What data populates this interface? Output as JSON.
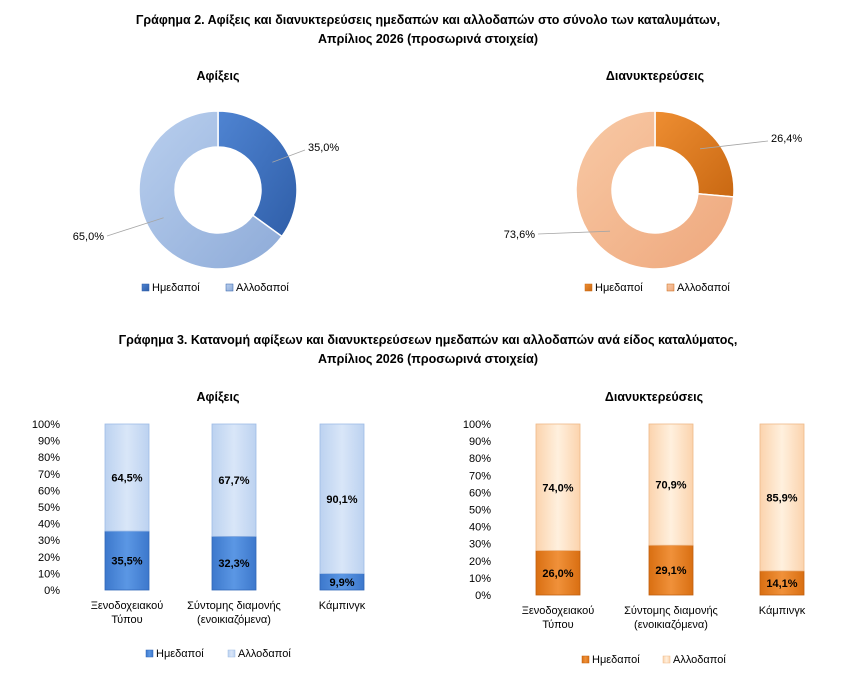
{
  "figure2": {
    "title_line1": "Γράφημα 2. Αφίξεις και διανυκτερεύσεις ημεδαπών και αλλοδαπών στο σύνολο των καταλυμάτων,",
    "title_line2": "Απρίλιος 2026  (προσωρινά στοιχεία)"
  },
  "figure3": {
    "title_line1": "Γράφημα 3. Κατανομή αφίξεων και διανυκτερεύσεων ημεδαπών και αλλοδαπών ανά είδος καταλύματος,",
    "title_line2": "Απρίλιος 2026 (προσωρινά στοιχεία)"
  },
  "colors": {
    "blue_dark": "#3f72c0",
    "blue_light": "#aac2e6",
    "blue_bar": "#4a86d6",
    "blue_bar_light": "#c7daf4",
    "orange_dark": "#e07a20",
    "orange_light": "#f4b892",
    "orange_bar": "#e07a20",
    "orange_bar_light": "#fde0c3"
  },
  "chart_data": [
    {
      "type": "pie",
      "title": "Αφίξεις",
      "categories": [
        "Ημεδαποί",
        "Αλλοδαποί"
      ],
      "values": [
        35.0,
        65.0
      ],
      "labels": [
        "35,0%",
        "65,0%"
      ],
      "legend": "bottom",
      "donut": true
    },
    {
      "type": "pie",
      "title": "Διανυκτερεύσεις",
      "categories": [
        "Ημεδαποί",
        "Αλλοδαποί"
      ],
      "values": [
        26.4,
        73.6
      ],
      "labels": [
        "26,4%",
        "73,6%"
      ],
      "legend": "bottom",
      "donut": true
    },
    {
      "type": "bar",
      "stacked": true,
      "title": "Αφίξεις",
      "categories": [
        [
          "Ξενοδοχειακού",
          "Τύπου"
        ],
        [
          "Σύντομης διαμονής",
          "(ενοικιαζόμενα)"
        ],
        [
          "Κάμπινγκ"
        ]
      ],
      "series": [
        {
          "name": "Ημεδαποί",
          "values": [
            35.5,
            32.3,
            9.9
          ],
          "labels": [
            "35,5%",
            "32,3%",
            "9,9%"
          ]
        },
        {
          "name": "Αλλοδαποί",
          "values": [
            64.5,
            67.7,
            90.1
          ],
          "labels": [
            "64,5%",
            "67,7%",
            "90,1%"
          ]
        }
      ],
      "ylim": [
        0,
        100
      ],
      "yticks": [
        "0%",
        "10%",
        "20%",
        "30%",
        "40%",
        "50%",
        "60%",
        "70%",
        "80%",
        "90%",
        "100%"
      ],
      "legend": "bottom"
    },
    {
      "type": "bar",
      "stacked": true,
      "title": "Διανυκτερεύσεις",
      "categories": [
        [
          "Ξενοδοχειακού",
          "Τύπου"
        ],
        [
          "Σύντομης διαμονής",
          "(ενοικιαζόμενα)"
        ],
        [
          "Κάμπινγκ"
        ]
      ],
      "series": [
        {
          "name": "Ημεδαποί",
          "values": [
            26.0,
            29.1,
            14.1
          ],
          "labels": [
            "26,0%",
            "29,1%",
            "14,1%"
          ]
        },
        {
          "name": "Αλλοδαποί",
          "values": [
            74.0,
            70.9,
            85.9
          ],
          "labels": [
            "74,0%",
            "70,9%",
            "85,9%"
          ]
        }
      ],
      "ylim": [
        0,
        100
      ],
      "yticks": [
        "0%",
        "10%",
        "20%",
        "30%",
        "40%",
        "50%",
        "60%",
        "70%",
        "80%",
        "90%",
        "100%"
      ],
      "legend": "bottom"
    }
  ]
}
